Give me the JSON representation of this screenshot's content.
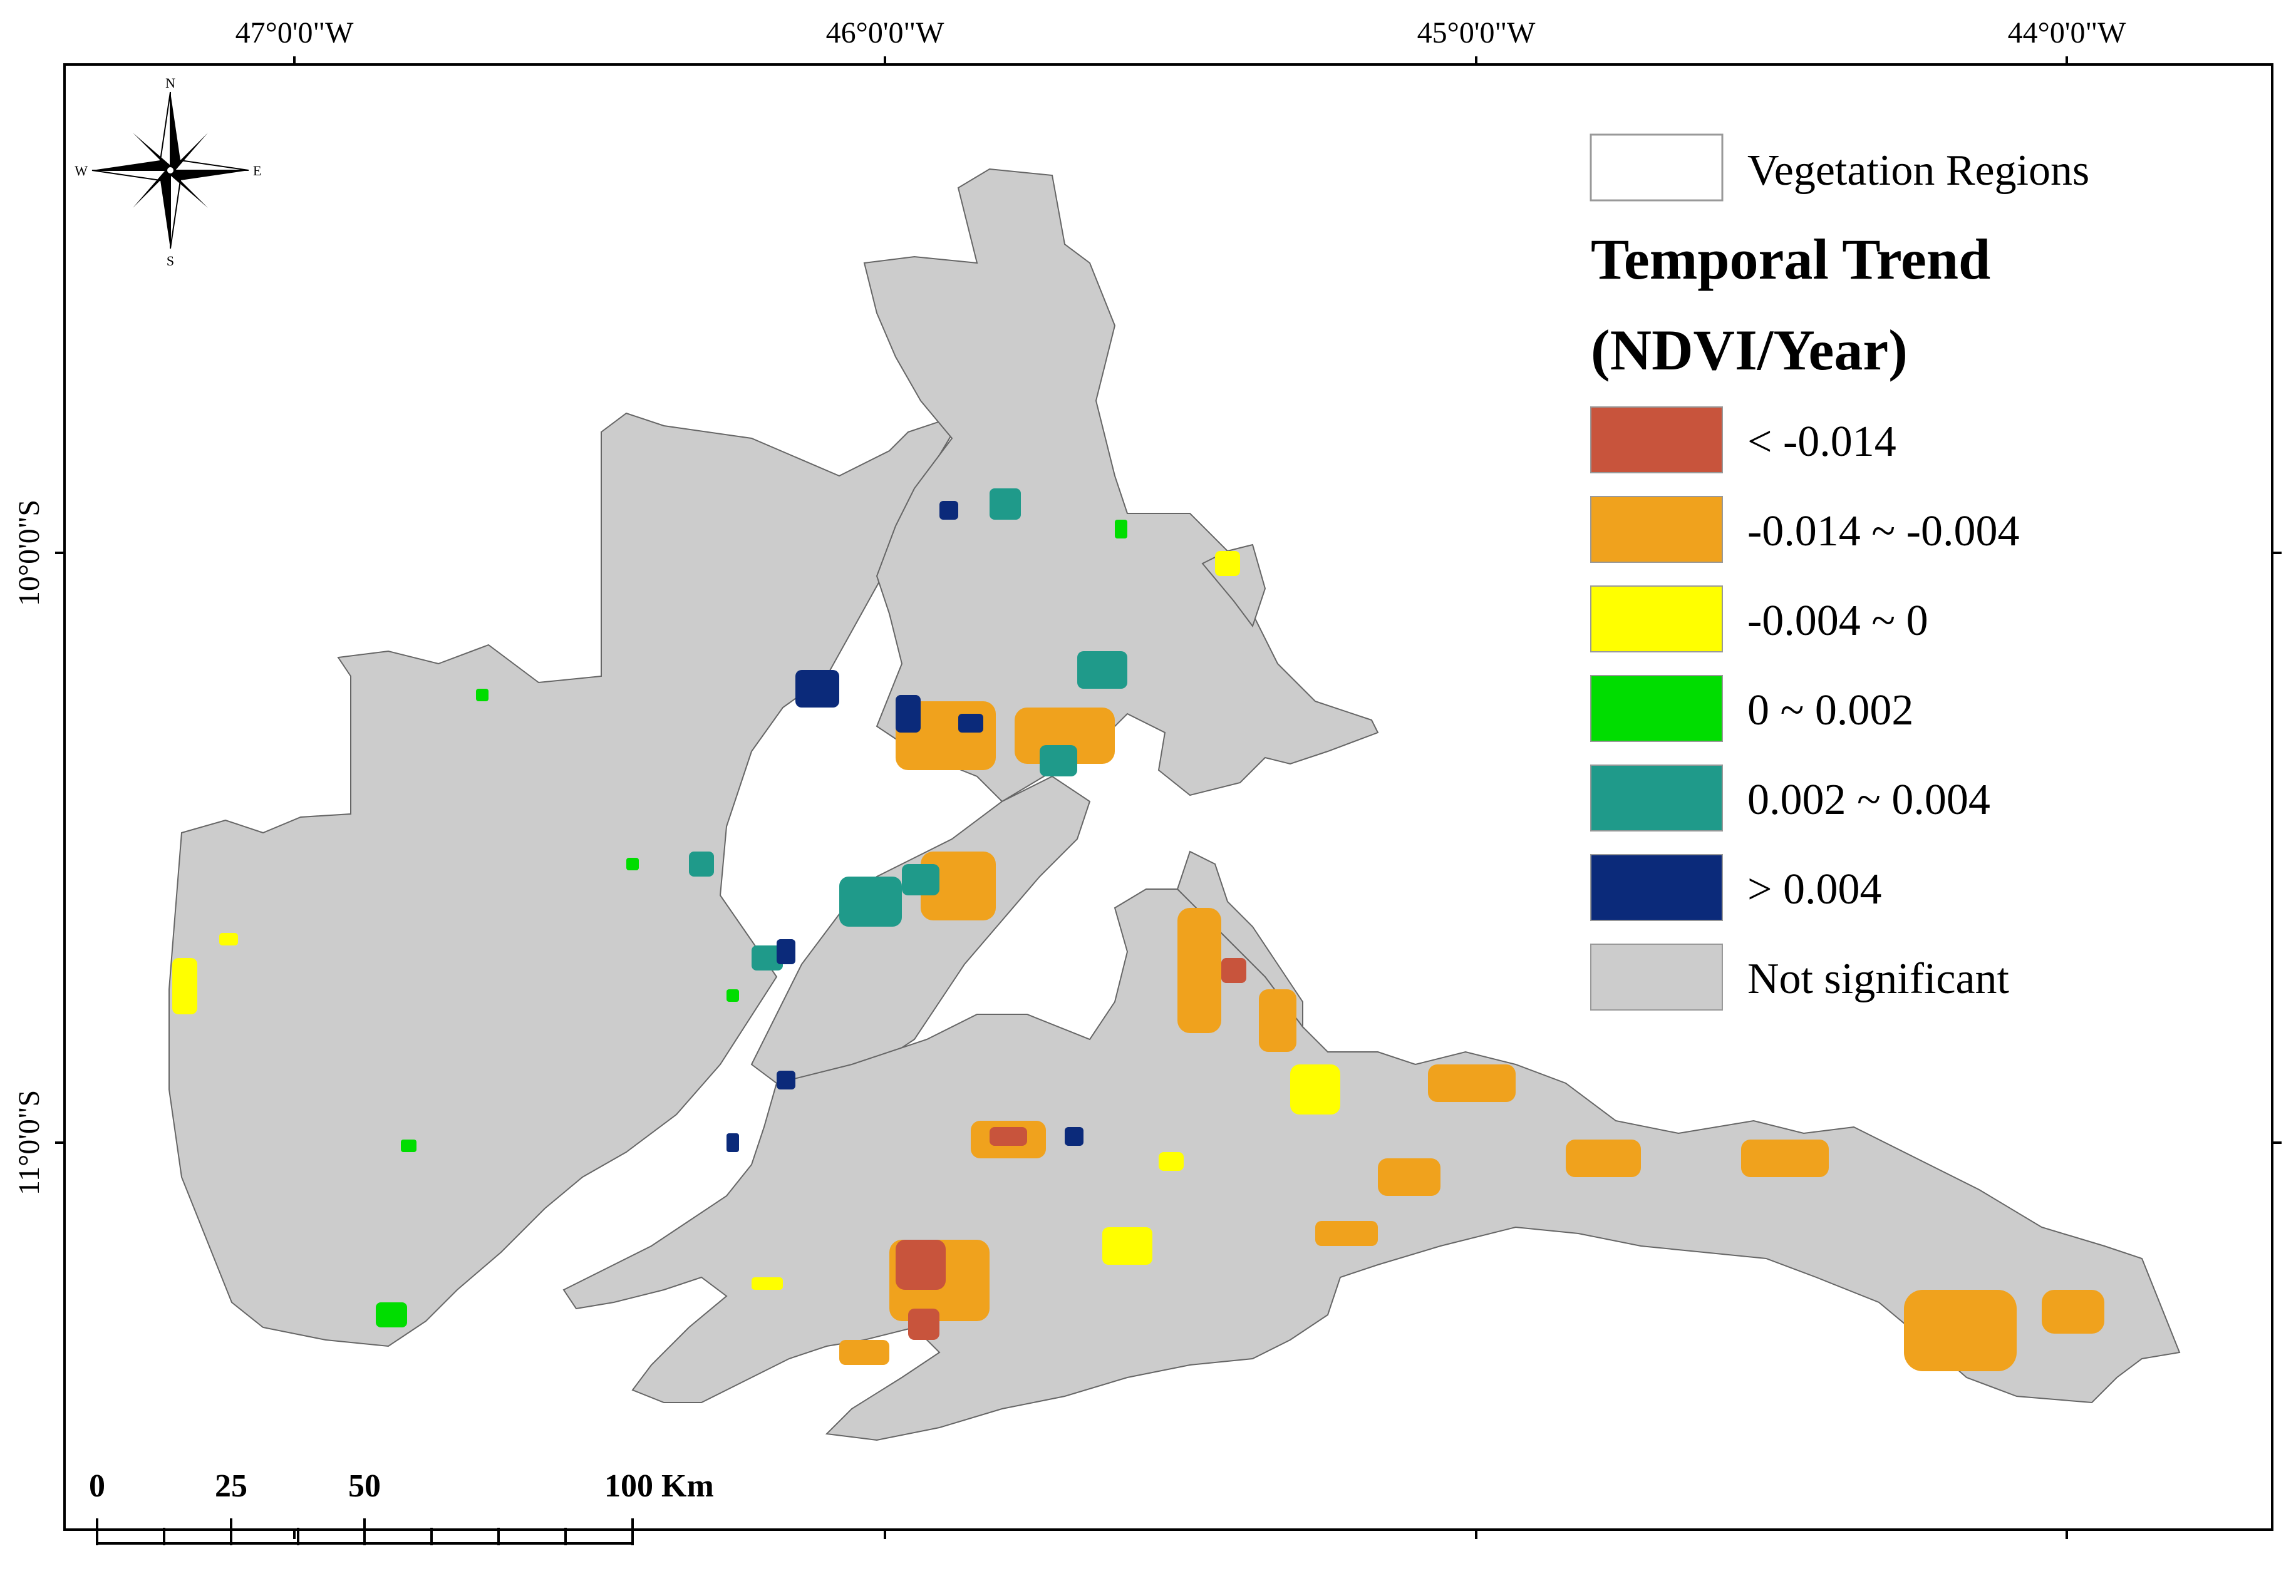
{
  "longitude_labels": [
    "47°0'0\"W",
    "46°0'0\"W",
    "45°0'0\"W",
    "44°0'0\"W"
  ],
  "latitude_labels": [
    "10°0'0\"S",
    "11°0'0\"S"
  ],
  "compass": {
    "n": "N",
    "s": "S",
    "e": "E",
    "w": "W",
    "icon": "north-arrow-compass-rose"
  },
  "legend": {
    "region_label": "Vegetation Regions",
    "title_line1": "Temporal Trend",
    "title_line2": "(NDVI/Year)",
    "classes": [
      {
        "label": "< -0.014",
        "color": "#c8543c"
      },
      {
        "label": "-0.014 ~ -0.004",
        "color": "#f0a21d"
      },
      {
        "label": "-0.004 ~ 0",
        "color": "#ffff00"
      },
      {
        "label": "0 ~ 0.002",
        "color": "#00dd00"
      },
      {
        "label": "0.002 ~ 0.004",
        "color": "#1f9a8a"
      },
      {
        "label": "> 0.004",
        "color": "#0b2a7a"
      },
      {
        "label": "Not significant",
        "color": "#cccccc"
      }
    ]
  },
  "scale_bar": {
    "labels": [
      "0",
      "25",
      "50",
      "100 Km"
    ]
  }
}
